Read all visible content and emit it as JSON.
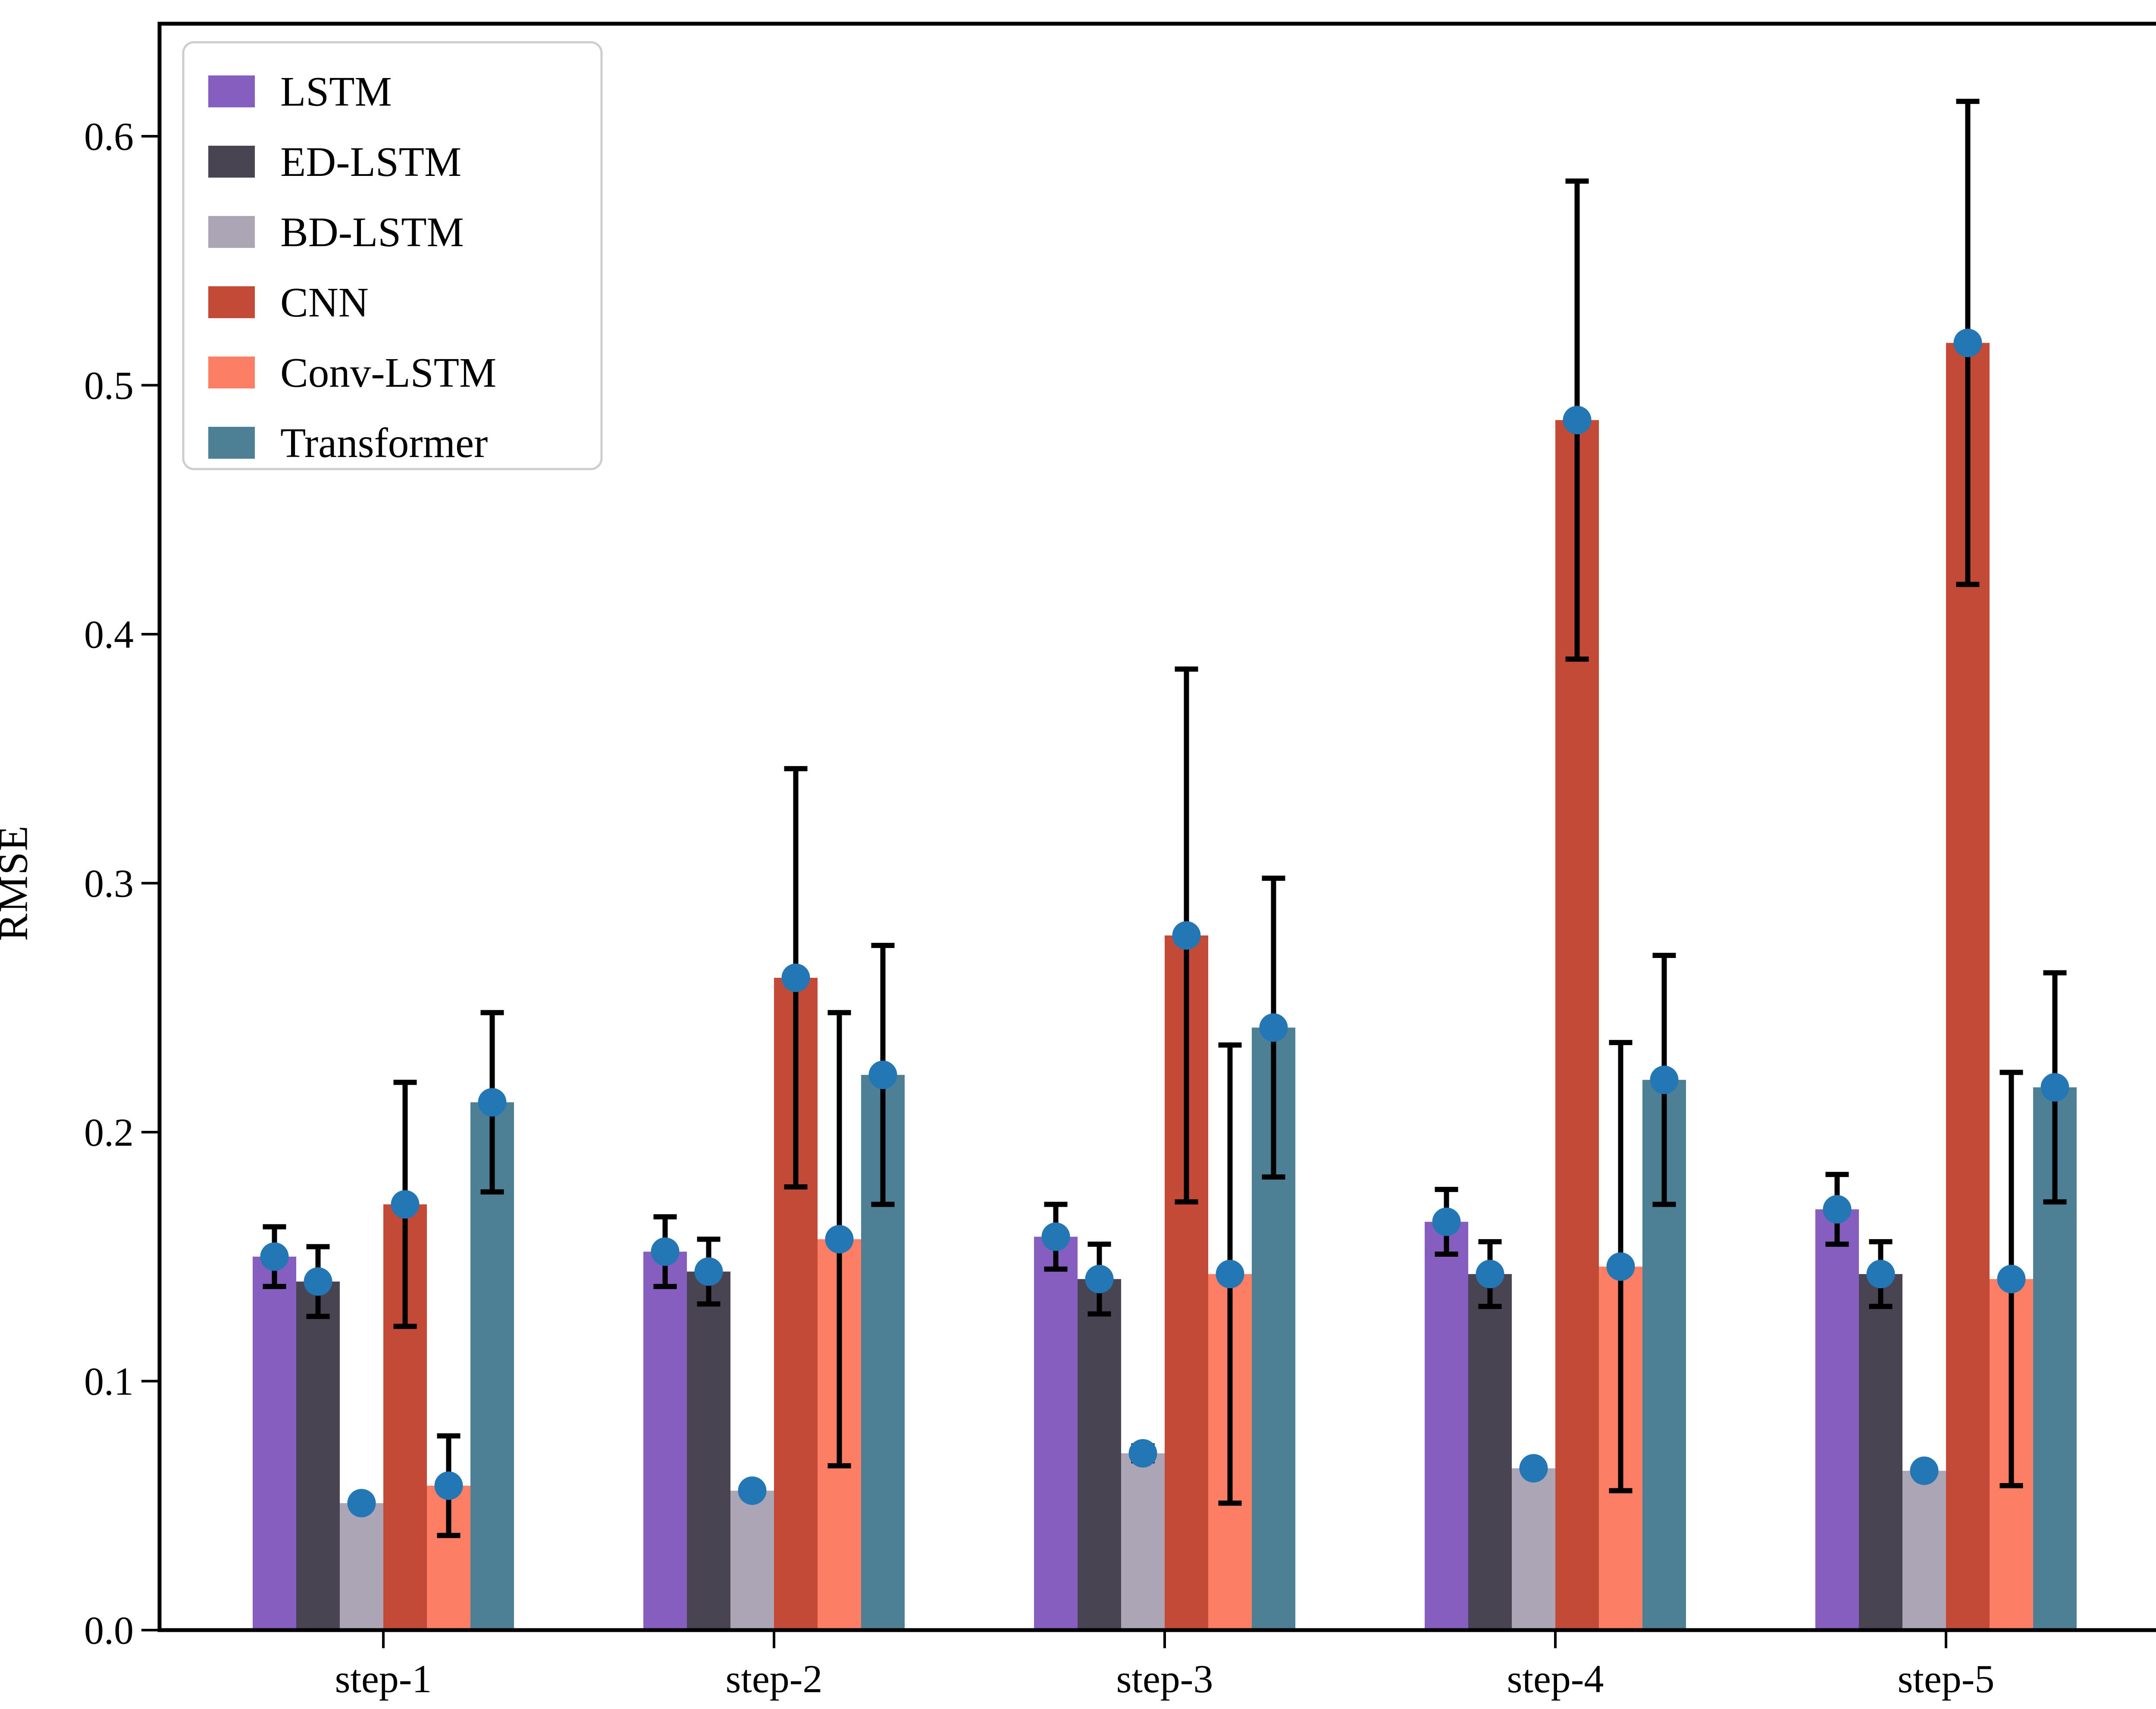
{
  "chart_data": {
    "type": "bar",
    "title": "",
    "xlabel": "",
    "ylabel": "RMSE",
    "categories": [
      "step-1",
      "step-2",
      "step-3",
      "step-4",
      "step-5"
    ],
    "ylim": [
      0.0,
      0.645
    ],
    "yticks": [
      0.0,
      0.1,
      0.2,
      0.3,
      0.4,
      0.5,
      0.6
    ],
    "ytick_labels": [
      "0.0",
      "0.1",
      "0.2",
      "0.3",
      "0.4",
      "0.5",
      "0.6"
    ],
    "grid": "off",
    "legend_position": "upper-left",
    "error_bars": true,
    "marker": "circle",
    "marker_color": "#2277B4",
    "error_color": "#000000",
    "axis_color": "#000000",
    "legend_border_color": "#CDCDCD",
    "series": [
      {
        "name": "LSTM",
        "color": "#855EC0",
        "values": [
          0.15,
          0.152,
          0.158,
          0.164,
          0.169
        ],
        "errors": [
          0.012,
          0.014,
          0.013,
          0.013,
          0.014
        ]
      },
      {
        "name": "ED-LSTM",
        "color": "#494452",
        "values": [
          0.14,
          0.144,
          0.141,
          0.143,
          0.143
        ],
        "errors": [
          0.014,
          0.013,
          0.014,
          0.013,
          0.013
        ]
      },
      {
        "name": "BD-LSTM",
        "color": "#ACA5B5",
        "values": [
          0.051,
          0.056,
          0.071,
          0.065,
          0.064
        ],
        "errors": [
          0.002,
          0.002,
          0.003,
          0.002,
          0.002
        ]
      },
      {
        "name": "CNN",
        "color": "#C24A37",
        "values": [
          0.171,
          0.262,
          0.279,
          0.486,
          0.517
        ],
        "errors": [
          0.049,
          0.084,
          0.107,
          0.096,
          0.097
        ]
      },
      {
        "name": "Conv-LSTM",
        "color": "#FC7E64",
        "values": [
          0.058,
          0.157,
          0.143,
          0.146,
          0.141
        ],
        "errors": [
          0.02,
          0.091,
          0.092,
          0.09,
          0.083
        ]
      },
      {
        "name": "Transformer",
        "color": "#4D8094",
        "values": [
          0.212,
          0.223,
          0.242,
          0.221,
          0.218
        ],
        "errors": [
          0.036,
          0.052,
          0.06,
          0.05,
          0.046
        ]
      }
    ]
  }
}
